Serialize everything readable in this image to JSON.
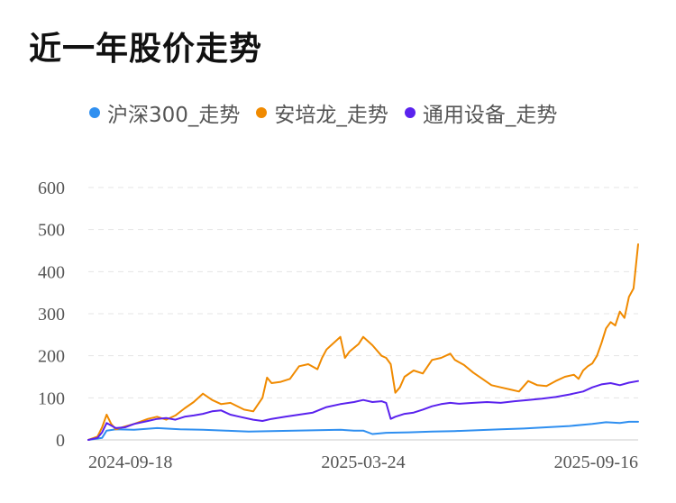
{
  "page_title": "近一年股价走势",
  "chart_data": {
    "type": "line",
    "title": "近一年股价走势",
    "xlabel": "",
    "ylabel": "",
    "ylim": [
      0,
      600
    ],
    "yticks": [
      0,
      100,
      200,
      300,
      400,
      500,
      600
    ],
    "grid": true,
    "legend_position": "top",
    "x_range": [
      0,
      120
    ],
    "x_ticks": [
      {
        "x": 0,
        "label": "2024-09-18"
      },
      {
        "x": 60,
        "label": "2025-03-24"
      },
      {
        "x": 120,
        "label": "2025-09-16"
      }
    ],
    "series": [
      {
        "name": "沪深300_走势",
        "color": "#2f8ff0",
        "values": [
          {
            "x": 0,
            "y": 0
          },
          {
            "x": 3,
            "y": 5
          },
          {
            "x": 4,
            "y": 22
          },
          {
            "x": 6,
            "y": 25
          },
          {
            "x": 10,
            "y": 24
          },
          {
            "x": 15,
            "y": 28
          },
          {
            "x": 20,
            "y": 25
          },
          {
            "x": 25,
            "y": 24
          },
          {
            "x": 30,
            "y": 22
          },
          {
            "x": 35,
            "y": 20
          },
          {
            "x": 40,
            "y": 21
          },
          {
            "x": 45,
            "y": 22
          },
          {
            "x": 50,
            "y": 23
          },
          {
            "x": 55,
            "y": 24
          },
          {
            "x": 58,
            "y": 22
          },
          {
            "x": 60,
            "y": 22
          },
          {
            "x": 62,
            "y": 14
          },
          {
            "x": 65,
            "y": 17
          },
          {
            "x": 70,
            "y": 18
          },
          {
            "x": 75,
            "y": 20
          },
          {
            "x": 80,
            "y": 21
          },
          {
            "x": 85,
            "y": 23
          },
          {
            "x": 90,
            "y": 25
          },
          {
            "x": 95,
            "y": 27
          },
          {
            "x": 100,
            "y": 30
          },
          {
            "x": 105,
            "y": 33
          },
          {
            "x": 110,
            "y": 38
          },
          {
            "x": 113,
            "y": 42
          },
          {
            "x": 116,
            "y": 40
          },
          {
            "x": 118,
            "y": 43
          },
          {
            "x": 120,
            "y": 43
          }
        ]
      },
      {
        "name": "安培龙_走势",
        "color": "#f08a00",
        "values": [
          {
            "x": 0,
            "y": 0
          },
          {
            "x": 2,
            "y": 8
          },
          {
            "x": 3,
            "y": 30
          },
          {
            "x": 4,
            "y": 60
          },
          {
            "x": 5,
            "y": 38
          },
          {
            "x": 6,
            "y": 25
          },
          {
            "x": 8,
            "y": 32
          },
          {
            "x": 10,
            "y": 38
          },
          {
            "x": 13,
            "y": 50
          },
          {
            "x": 15,
            "y": 55
          },
          {
            "x": 17,
            "y": 48
          },
          {
            "x": 19,
            "y": 58
          },
          {
            "x": 21,
            "y": 75
          },
          {
            "x": 23,
            "y": 90
          },
          {
            "x": 25,
            "y": 110
          },
          {
            "x": 27,
            "y": 95
          },
          {
            "x": 29,
            "y": 85
          },
          {
            "x": 31,
            "y": 88
          },
          {
            "x": 34,
            "y": 72
          },
          {
            "x": 36,
            "y": 68
          },
          {
            "x": 38,
            "y": 100
          },
          {
            "x": 39,
            "y": 148
          },
          {
            "x": 40,
            "y": 135
          },
          {
            "x": 42,
            "y": 138
          },
          {
            "x": 44,
            "y": 145
          },
          {
            "x": 46,
            "y": 175
          },
          {
            "x": 48,
            "y": 180
          },
          {
            "x": 50,
            "y": 168
          },
          {
            "x": 51,
            "y": 195
          },
          {
            "x": 52,
            "y": 215
          },
          {
            "x": 53,
            "y": 225
          },
          {
            "x": 55,
            "y": 245
          },
          {
            "x": 56,
            "y": 195
          },
          {
            "x": 57,
            "y": 210
          },
          {
            "x": 59,
            "y": 228
          },
          {
            "x": 60,
            "y": 245
          },
          {
            "x": 62,
            "y": 225
          },
          {
            "x": 64,
            "y": 200
          },
          {
            "x": 65,
            "y": 195
          },
          {
            "x": 66,
            "y": 180
          },
          {
            "x": 67,
            "y": 112
          },
          {
            "x": 68,
            "y": 125
          },
          {
            "x": 69,
            "y": 150
          },
          {
            "x": 71,
            "y": 165
          },
          {
            "x": 73,
            "y": 158
          },
          {
            "x": 75,
            "y": 190
          },
          {
            "x": 77,
            "y": 195
          },
          {
            "x": 79,
            "y": 205
          },
          {
            "x": 80,
            "y": 190
          },
          {
            "x": 82,
            "y": 178
          },
          {
            "x": 84,
            "y": 160
          },
          {
            "x": 86,
            "y": 145
          },
          {
            "x": 88,
            "y": 130
          },
          {
            "x": 90,
            "y": 125
          },
          {
            "x": 92,
            "y": 120
          },
          {
            "x": 94,
            "y": 115
          },
          {
            "x": 96,
            "y": 140
          },
          {
            "x": 98,
            "y": 130
          },
          {
            "x": 100,
            "y": 128
          },
          {
            "x": 102,
            "y": 140
          },
          {
            "x": 104,
            "y": 150
          },
          {
            "x": 106,
            "y": 155
          },
          {
            "x": 107,
            "y": 145
          },
          {
            "x": 108,
            "y": 165
          },
          {
            "x": 109,
            "y": 175
          },
          {
            "x": 110,
            "y": 182
          },
          {
            "x": 111,
            "y": 200
          },
          {
            "x": 112,
            "y": 230
          },
          {
            "x": 113,
            "y": 265
          },
          {
            "x": 114,
            "y": 280
          },
          {
            "x": 115,
            "y": 272
          },
          {
            "x": 116,
            "y": 305
          },
          {
            "x": 117,
            "y": 290
          },
          {
            "x": 118,
            "y": 340
          },
          {
            "x": 119,
            "y": 360
          },
          {
            "x": 120,
            "y": 465
          }
        ]
      },
      {
        "name": "通用设备_走势",
        "color": "#5a22ee",
        "values": [
          {
            "x": 0,
            "y": 0
          },
          {
            "x": 2,
            "y": 5
          },
          {
            "x": 3,
            "y": 18
          },
          {
            "x": 4,
            "y": 40
          },
          {
            "x": 6,
            "y": 28
          },
          {
            "x": 8,
            "y": 30
          },
          {
            "x": 10,
            "y": 38
          },
          {
            "x": 13,
            "y": 45
          },
          {
            "x": 15,
            "y": 50
          },
          {
            "x": 17,
            "y": 52
          },
          {
            "x": 19,
            "y": 48
          },
          {
            "x": 21,
            "y": 55
          },
          {
            "x": 23,
            "y": 58
          },
          {
            "x": 25,
            "y": 62
          },
          {
            "x": 27,
            "y": 68
          },
          {
            "x": 29,
            "y": 70
          },
          {
            "x": 31,
            "y": 60
          },
          {
            "x": 33,
            "y": 55
          },
          {
            "x": 36,
            "y": 48
          },
          {
            "x": 38,
            "y": 45
          },
          {
            "x": 40,
            "y": 50
          },
          {
            "x": 43,
            "y": 55
          },
          {
            "x": 46,
            "y": 60
          },
          {
            "x": 49,
            "y": 65
          },
          {
            "x": 52,
            "y": 78
          },
          {
            "x": 55,
            "y": 85
          },
          {
            "x": 58,
            "y": 90
          },
          {
            "x": 60,
            "y": 95
          },
          {
            "x": 62,
            "y": 90
          },
          {
            "x": 64,
            "y": 92
          },
          {
            "x": 65,
            "y": 88
          },
          {
            "x": 66,
            "y": 50
          },
          {
            "x": 67,
            "y": 55
          },
          {
            "x": 69,
            "y": 62
          },
          {
            "x": 71,
            "y": 65
          },
          {
            "x": 73,
            "y": 72
          },
          {
            "x": 75,
            "y": 80
          },
          {
            "x": 77,
            "y": 85
          },
          {
            "x": 79,
            "y": 88
          },
          {
            "x": 81,
            "y": 86
          },
          {
            "x": 84,
            "y": 88
          },
          {
            "x": 87,
            "y": 90
          },
          {
            "x": 90,
            "y": 88
          },
          {
            "x": 93,
            "y": 92
          },
          {
            "x": 96,
            "y": 95
          },
          {
            "x": 99,
            "y": 98
          },
          {
            "x": 102,
            "y": 102
          },
          {
            "x": 105,
            "y": 108
          },
          {
            "x": 108,
            "y": 115
          },
          {
            "x": 110,
            "y": 125
          },
          {
            "x": 112,
            "y": 132
          },
          {
            "x": 114,
            "y": 135
          },
          {
            "x": 116,
            "y": 130
          },
          {
            "x": 118,
            "y": 136
          },
          {
            "x": 120,
            "y": 140
          }
        ]
      }
    ]
  }
}
